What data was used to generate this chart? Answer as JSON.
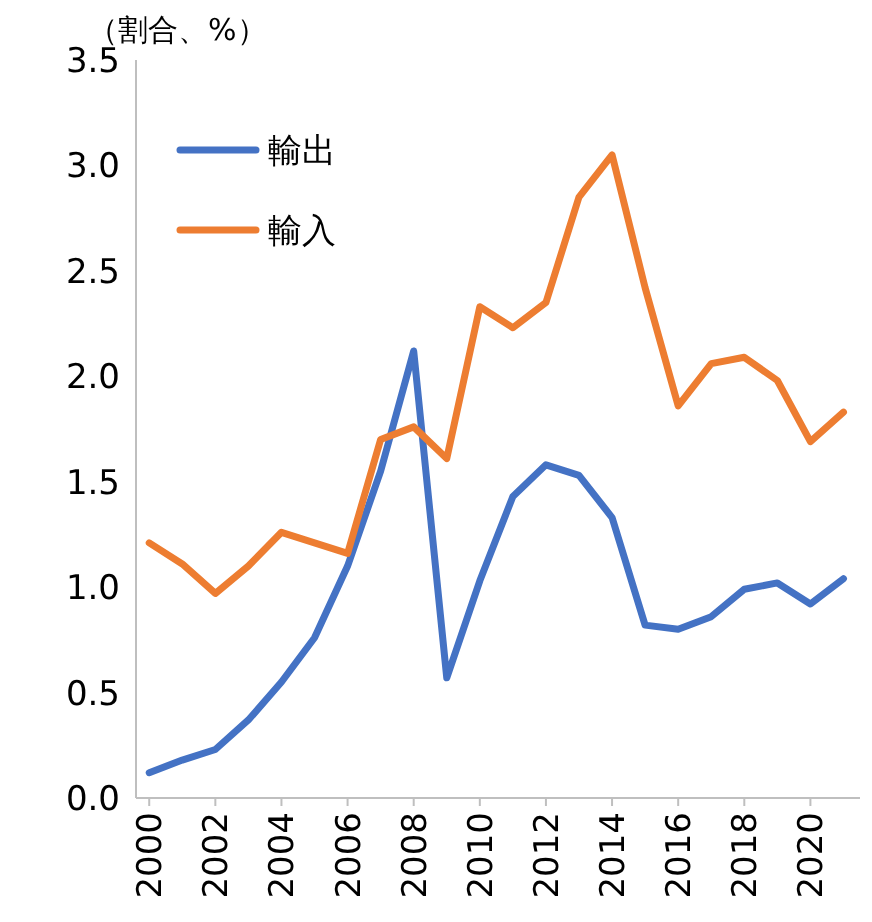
{
  "chart_data": {
    "type": "line",
    "ylabel": "（割合、%）",
    "x": [
      2000,
      2001,
      2002,
      2003,
      2004,
      2005,
      2006,
      2007,
      2008,
      2009,
      2010,
      2011,
      2012,
      2013,
      2014,
      2015,
      2016,
      2017,
      2018,
      2019,
      2020,
      2021
    ],
    "series": [
      {
        "name": "輸出",
        "color": "#4472c4",
        "values": [
          0.12,
          0.18,
          0.23,
          0.37,
          0.55,
          0.76,
          1.1,
          1.55,
          2.12,
          0.57,
          1.03,
          1.43,
          1.58,
          1.53,
          1.33,
          0.82,
          0.8,
          0.86,
          0.99,
          1.02,
          0.92,
          1.04
        ]
      },
      {
        "name": "輸入",
        "color": "#ed7d31",
        "values": [
          1.21,
          1.11,
          0.97,
          1.1,
          1.26,
          1.21,
          1.16,
          1.7,
          1.76,
          1.61,
          2.33,
          2.23,
          2.35,
          2.85,
          3.05,
          2.42,
          1.86,
          2.06,
          2.09,
          1.98,
          1.69,
          1.83
        ]
      }
    ],
    "xlim": [
      1999.6,
      2021.5
    ],
    "xticks": [
      2000,
      2002,
      2004,
      2006,
      2008,
      2010,
      2012,
      2014,
      2016,
      2018,
      2020
    ],
    "ylim": [
      0,
      3.5
    ],
    "yticks": [
      {
        "value": 0,
        "label": "0.0"
      },
      {
        "value": 0.5,
        "label": "0.5"
      },
      {
        "value": 1,
        "label": "1.0"
      },
      {
        "value": 1.5,
        "label": "1.5"
      },
      {
        "value": 2,
        "label": "2.0"
      },
      {
        "value": 2.5,
        "label": "2.5"
      },
      {
        "value": 3,
        "label": "3.0"
      },
      {
        "value": 3.5,
        "label": "3.5"
      }
    ],
    "grid": false,
    "legend": "top left",
    "marker": "none",
    "line_style": "solid"
  }
}
